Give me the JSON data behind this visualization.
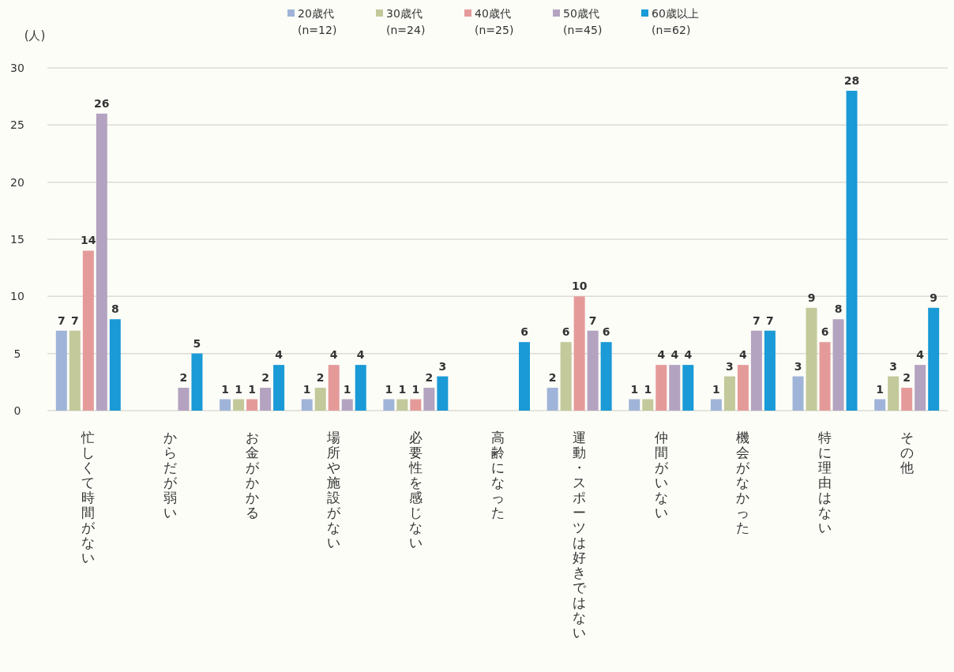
{
  "chart_data": {
    "type": "bar",
    "ylabel": "(人)",
    "categories": [
      "忙しくて時間がない",
      "からだが弱い",
      "お金がかかる",
      "場所や施設がない",
      "必要性を感じない",
      "高齢になった",
      "運動・スポーツは好きではない",
      "仲間がいない",
      "機会がなかった",
      "特に理由はない",
      "その他"
    ],
    "series": [
      {
        "name": "20歳代 (n=12)",
        "color": "#9fb4d8",
        "values": [
          7,
          null,
          1,
          1,
          1,
          null,
          2,
          1,
          1,
          3,
          1
        ]
      },
      {
        "name": "30歳代 (n=24)",
        "color": "#c3c99a",
        "values": [
          7,
          null,
          1,
          2,
          1,
          null,
          6,
          1,
          3,
          9,
          3
        ]
      },
      {
        "name": "40歳代 (n=25)",
        "color": "#e59a9a",
        "values": [
          14,
          null,
          1,
          4,
          1,
          null,
          10,
          4,
          4,
          6,
          2
        ]
      },
      {
        "name": "50歳代 (n=45)",
        "color": "#b3a3c0",
        "values": [
          26,
          2,
          2,
          1,
          2,
          null,
          7,
          4,
          7,
          8,
          4
        ]
      },
      {
        "name": "60歳以上 (n=62)",
        "color": "#1a9ad6",
        "values": [
          8,
          5,
          4,
          4,
          3,
          6,
          6,
          4,
          7,
          28,
          9
        ]
      }
    ],
    "ylim": [
      0,
      30
    ],
    "yticks": [
      0,
      5,
      10,
      15,
      20,
      25,
      30
    ],
    "grid": "y",
    "legend": "top",
    "data_labels": true
  }
}
